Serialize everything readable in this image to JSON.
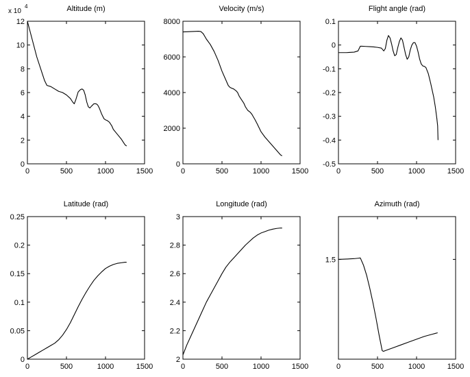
{
  "chart_data": [
    {
      "type": "line",
      "title": "Altitude (m)",
      "axis_multiplier": "x 10",
      "axis_multiplier_exp": "4",
      "xlim": [
        0,
        1500
      ],
      "ylim": [
        0,
        12
      ],
      "xticks": [
        0,
        500,
        1000,
        1500
      ],
      "yticks": [
        0,
        2,
        4,
        6,
        8,
        10,
        12
      ],
      "xticklabels": [
        "0",
        "500",
        "1000",
        "1500"
      ],
      "yticklabels": [
        "0",
        "2",
        "4",
        "6",
        "8",
        "10",
        "12"
      ],
      "grid": false,
      "series": [
        {
          "x": [
            0,
            60,
            120,
            180,
            220,
            250,
            300,
            350,
            400,
            450,
            500,
            550,
            580,
            600,
            620,
            650,
            680,
            700,
            720,
            740,
            760,
            780,
            800,
            820,
            850,
            880,
            900,
            920,
            950,
            980,
            1000,
            1020,
            1050,
            1080,
            1100,
            1150,
            1200,
            1250,
            1270
          ],
          "y": [
            12,
            10.5,
            9,
            7.8,
            7,
            6.6,
            6.5,
            6.3,
            6.1,
            6.0,
            5.8,
            5.5,
            5.2,
            5.05,
            5.4,
            6.05,
            6.25,
            6.3,
            6.2,
            5.8,
            5.2,
            4.8,
            4.7,
            4.85,
            5.05,
            5.05,
            4.95,
            4.7,
            4.2,
            3.8,
            3.7,
            3.65,
            3.5,
            3.2,
            2.9,
            2.5,
            2.1,
            1.6,
            1.5
          ]
        }
      ]
    },
    {
      "type": "line",
      "title": "Velocity (m/s)",
      "xlim": [
        0,
        1500
      ],
      "ylim": [
        0,
        8000
      ],
      "xticks": [
        0,
        500,
        1000,
        1500
      ],
      "yticks": [
        0,
        2000,
        4000,
        6000,
        8000
      ],
      "xticklabels": [
        "0",
        "500",
        "1000",
        "1500"
      ],
      "yticklabels": [
        "0",
        "2000",
        "4000",
        "6000",
        "8000"
      ],
      "grid": false,
      "series": [
        {
          "x": [
            0,
            50,
            100,
            150,
            200,
            230,
            260,
            300,
            350,
            400,
            450,
            500,
            530,
            560,
            580,
            600,
            620,
            650,
            680,
            700,
            720,
            750,
            780,
            800,
            830,
            860,
            880,
            900,
            920,
            950,
            1000,
            1050,
            1100,
            1150,
            1200,
            1250,
            1270
          ],
          "y": [
            7400,
            7410,
            7420,
            7430,
            7440,
            7420,
            7300,
            7000,
            6700,
            6300,
            5800,
            5200,
            4900,
            4600,
            4400,
            4300,
            4250,
            4200,
            4100,
            4000,
            3800,
            3600,
            3400,
            3200,
            3000,
            2900,
            2800,
            2650,
            2500,
            2250,
            1800,
            1500,
            1250,
            1000,
            750,
            500,
            450
          ]
        }
      ]
    },
    {
      "type": "line",
      "title": "Flight angle (rad)",
      "xlim": [
        0,
        1500
      ],
      "ylim": [
        -0.5,
        0.1
      ],
      "xticks": [
        0,
        500,
        1000,
        1500
      ],
      "yticks": [
        -0.5,
        -0.4,
        -0.3,
        -0.2,
        -0.1,
        0,
        0.1
      ],
      "xticklabels": [
        "0",
        "500",
        "1000",
        "1500"
      ],
      "yticklabels": [
        "-0.5",
        "-0.4",
        "-0.3",
        "-0.2",
        "-0.1",
        "0",
        "0.1"
      ],
      "grid": false,
      "series": [
        {
          "x": [
            0,
            100,
            200,
            250,
            280,
            300,
            350,
            400,
            450,
            500,
            550,
            580,
            600,
            620,
            640,
            660,
            680,
            700,
            720,
            740,
            760,
            780,
            800,
            820,
            840,
            860,
            880,
            900,
            920,
            940,
            960,
            980,
            1000,
            1020,
            1040,
            1060,
            1080,
            1100,
            1120,
            1150,
            1180,
            1200,
            1220,
            1240,
            1260,
            1270,
            1275
          ],
          "y": [
            -0.032,
            -0.032,
            -0.03,
            -0.025,
            -0.005,
            -0.005,
            -0.006,
            -0.007,
            -0.008,
            -0.01,
            -0.013,
            -0.025,
            -0.015,
            0.02,
            0.04,
            0.03,
            0.005,
            -0.025,
            -0.045,
            -0.04,
            -0.01,
            0.015,
            0.03,
            0.02,
            -0.01,
            -0.04,
            -0.06,
            -0.05,
            -0.02,
            0.0,
            0.01,
            0.01,
            -0.005,
            -0.03,
            -0.06,
            -0.08,
            -0.088,
            -0.09,
            -0.095,
            -0.12,
            -0.16,
            -0.19,
            -0.22,
            -0.26,
            -0.31,
            -0.34,
            -0.4
          ]
        }
      ]
    },
    {
      "type": "line",
      "title": "Latitude (rad)",
      "xlim": [
        0,
        1500
      ],
      "ylim": [
        0,
        0.25
      ],
      "xticks": [
        0,
        500,
        1000,
        1500
      ],
      "yticks": [
        0,
        0.05,
        0.1,
        0.15,
        0.2,
        0.25
      ],
      "xticklabels": [
        "0",
        "500",
        "1000",
        "1500"
      ],
      "yticklabels": [
        "0",
        "0.05",
        "0.1",
        "0.15",
        "0.2",
        "0.25"
      ],
      "grid": false,
      "series": [
        {
          "x": [
            0,
            50,
            100,
            150,
            200,
            250,
            300,
            350,
            400,
            450,
            500,
            550,
            600,
            650,
            700,
            750,
            800,
            850,
            900,
            950,
            1000,
            1050,
            1100,
            1150,
            1200,
            1250,
            1270
          ],
          "y": [
            0,
            0.004,
            0.008,
            0.012,
            0.016,
            0.02,
            0.024,
            0.028,
            0.034,
            0.042,
            0.052,
            0.064,
            0.078,
            0.092,
            0.105,
            0.117,
            0.128,
            0.138,
            0.146,
            0.153,
            0.159,
            0.163,
            0.166,
            0.168,
            0.169,
            0.17,
            0.17
          ]
        }
      ]
    },
    {
      "type": "line",
      "title": "Longitude (rad)",
      "xlim": [
        0,
        1500
      ],
      "ylim": [
        2,
        3
      ],
      "xticks": [
        0,
        500,
        1000,
        1500
      ],
      "yticks": [
        2,
        2.2,
        2.4,
        2.6,
        2.8,
        3
      ],
      "xticklabels": [
        "0",
        "500",
        "1000",
        "1500"
      ],
      "yticklabels": [
        "2",
        "2.2",
        "2.4",
        "2.6",
        "2.8",
        "3"
      ],
      "grid": false,
      "series": [
        {
          "x": [
            0,
            50,
            100,
            150,
            200,
            250,
            300,
            350,
            400,
            450,
            500,
            550,
            600,
            650,
            700,
            750,
            800,
            850,
            900,
            950,
            1000,
            1050,
            1100,
            1150,
            1200,
            1250,
            1270
          ],
          "y": [
            2.03,
            2.1,
            2.16,
            2.22,
            2.28,
            2.34,
            2.4,
            2.45,
            2.5,
            2.55,
            2.6,
            2.645,
            2.68,
            2.71,
            2.74,
            2.77,
            2.8,
            2.825,
            2.85,
            2.87,
            2.885,
            2.895,
            2.905,
            2.912,
            2.917,
            2.92,
            2.92
          ]
        }
      ]
    },
    {
      "type": "line",
      "title": "Azimuth (rad)",
      "xlim": [
        0,
        1500
      ],
      "ylim": [
        0.8,
        1.8
      ],
      "xticks": [
        0,
        500,
        1000,
        1500
      ],
      "yticks": [
        1.5
      ],
      "xticklabels": [
        "0",
        "500",
        "1000",
        "1500"
      ],
      "yticklabels": [
        "1.5"
      ],
      "grid": false,
      "series": [
        {
          "x": [
            0,
            100,
            200,
            250,
            280,
            320,
            360,
            400,
            440,
            480,
            520,
            560,
            575,
            600,
            700,
            800,
            900,
            1000,
            1100,
            1200,
            1270
          ],
          "y": [
            1.5,
            1.502,
            1.505,
            1.508,
            1.51,
            1.46,
            1.39,
            1.3,
            1.2,
            1.09,
            0.97,
            0.86,
            0.855,
            0.86,
            0.88,
            0.9,
            0.92,
            0.94,
            0.96,
            0.975,
            0.985
          ]
        }
      ]
    }
  ]
}
